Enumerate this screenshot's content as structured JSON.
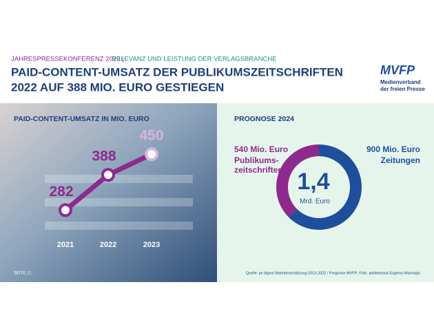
{
  "header": {
    "event": "JAHRESPRESSEKONFERENZ 2023 |",
    "topic": "RELEVANZ UND LEISTUNG DER VERLAGSBRANCHE",
    "title_line1": "PAID-CONTENT-UMSATZ DER PUBLIKUMSZEITSCHRIFTEN",
    "title_line2": "2022 AUF 388 MIO. EURO GESTIEGEN",
    "logo": "MVFP",
    "logo_sub1": "Medienverband",
    "logo_sub2": "der freien Presse"
  },
  "chart_data": [
    {
      "type": "line",
      "title": "PAID-CONTENT-UMSATZ IN MIO. EURO",
      "categories": [
        "2021",
        "2022",
        "2023"
      ],
      "values": [
        282,
        388,
        450
      ],
      "color": "#8e2a8e",
      "ylim": [
        200,
        500
      ]
    },
    {
      "type": "pie",
      "title": "PROGNOSE 2024",
      "categories": [
        "Publikums-\nzeitschriften",
        "Zeitungen"
      ],
      "values": [
        540,
        900
      ],
      "value_labels": [
        "540 Mio. Euro",
        "900 Mio. Euro"
      ],
      "colors": [
        "#8e2a8e",
        "#1f4e9c"
      ],
      "center_label": "1,4",
      "center_unit": "Mrd. Euro"
    }
  ],
  "footer": {
    "page": "SEITE 21",
    "source": "Quelle: pv digest Marktein­schätzung 2013-2022 / Prognose MVFP; Foto: adobestock-Eugenio Marongiu"
  }
}
